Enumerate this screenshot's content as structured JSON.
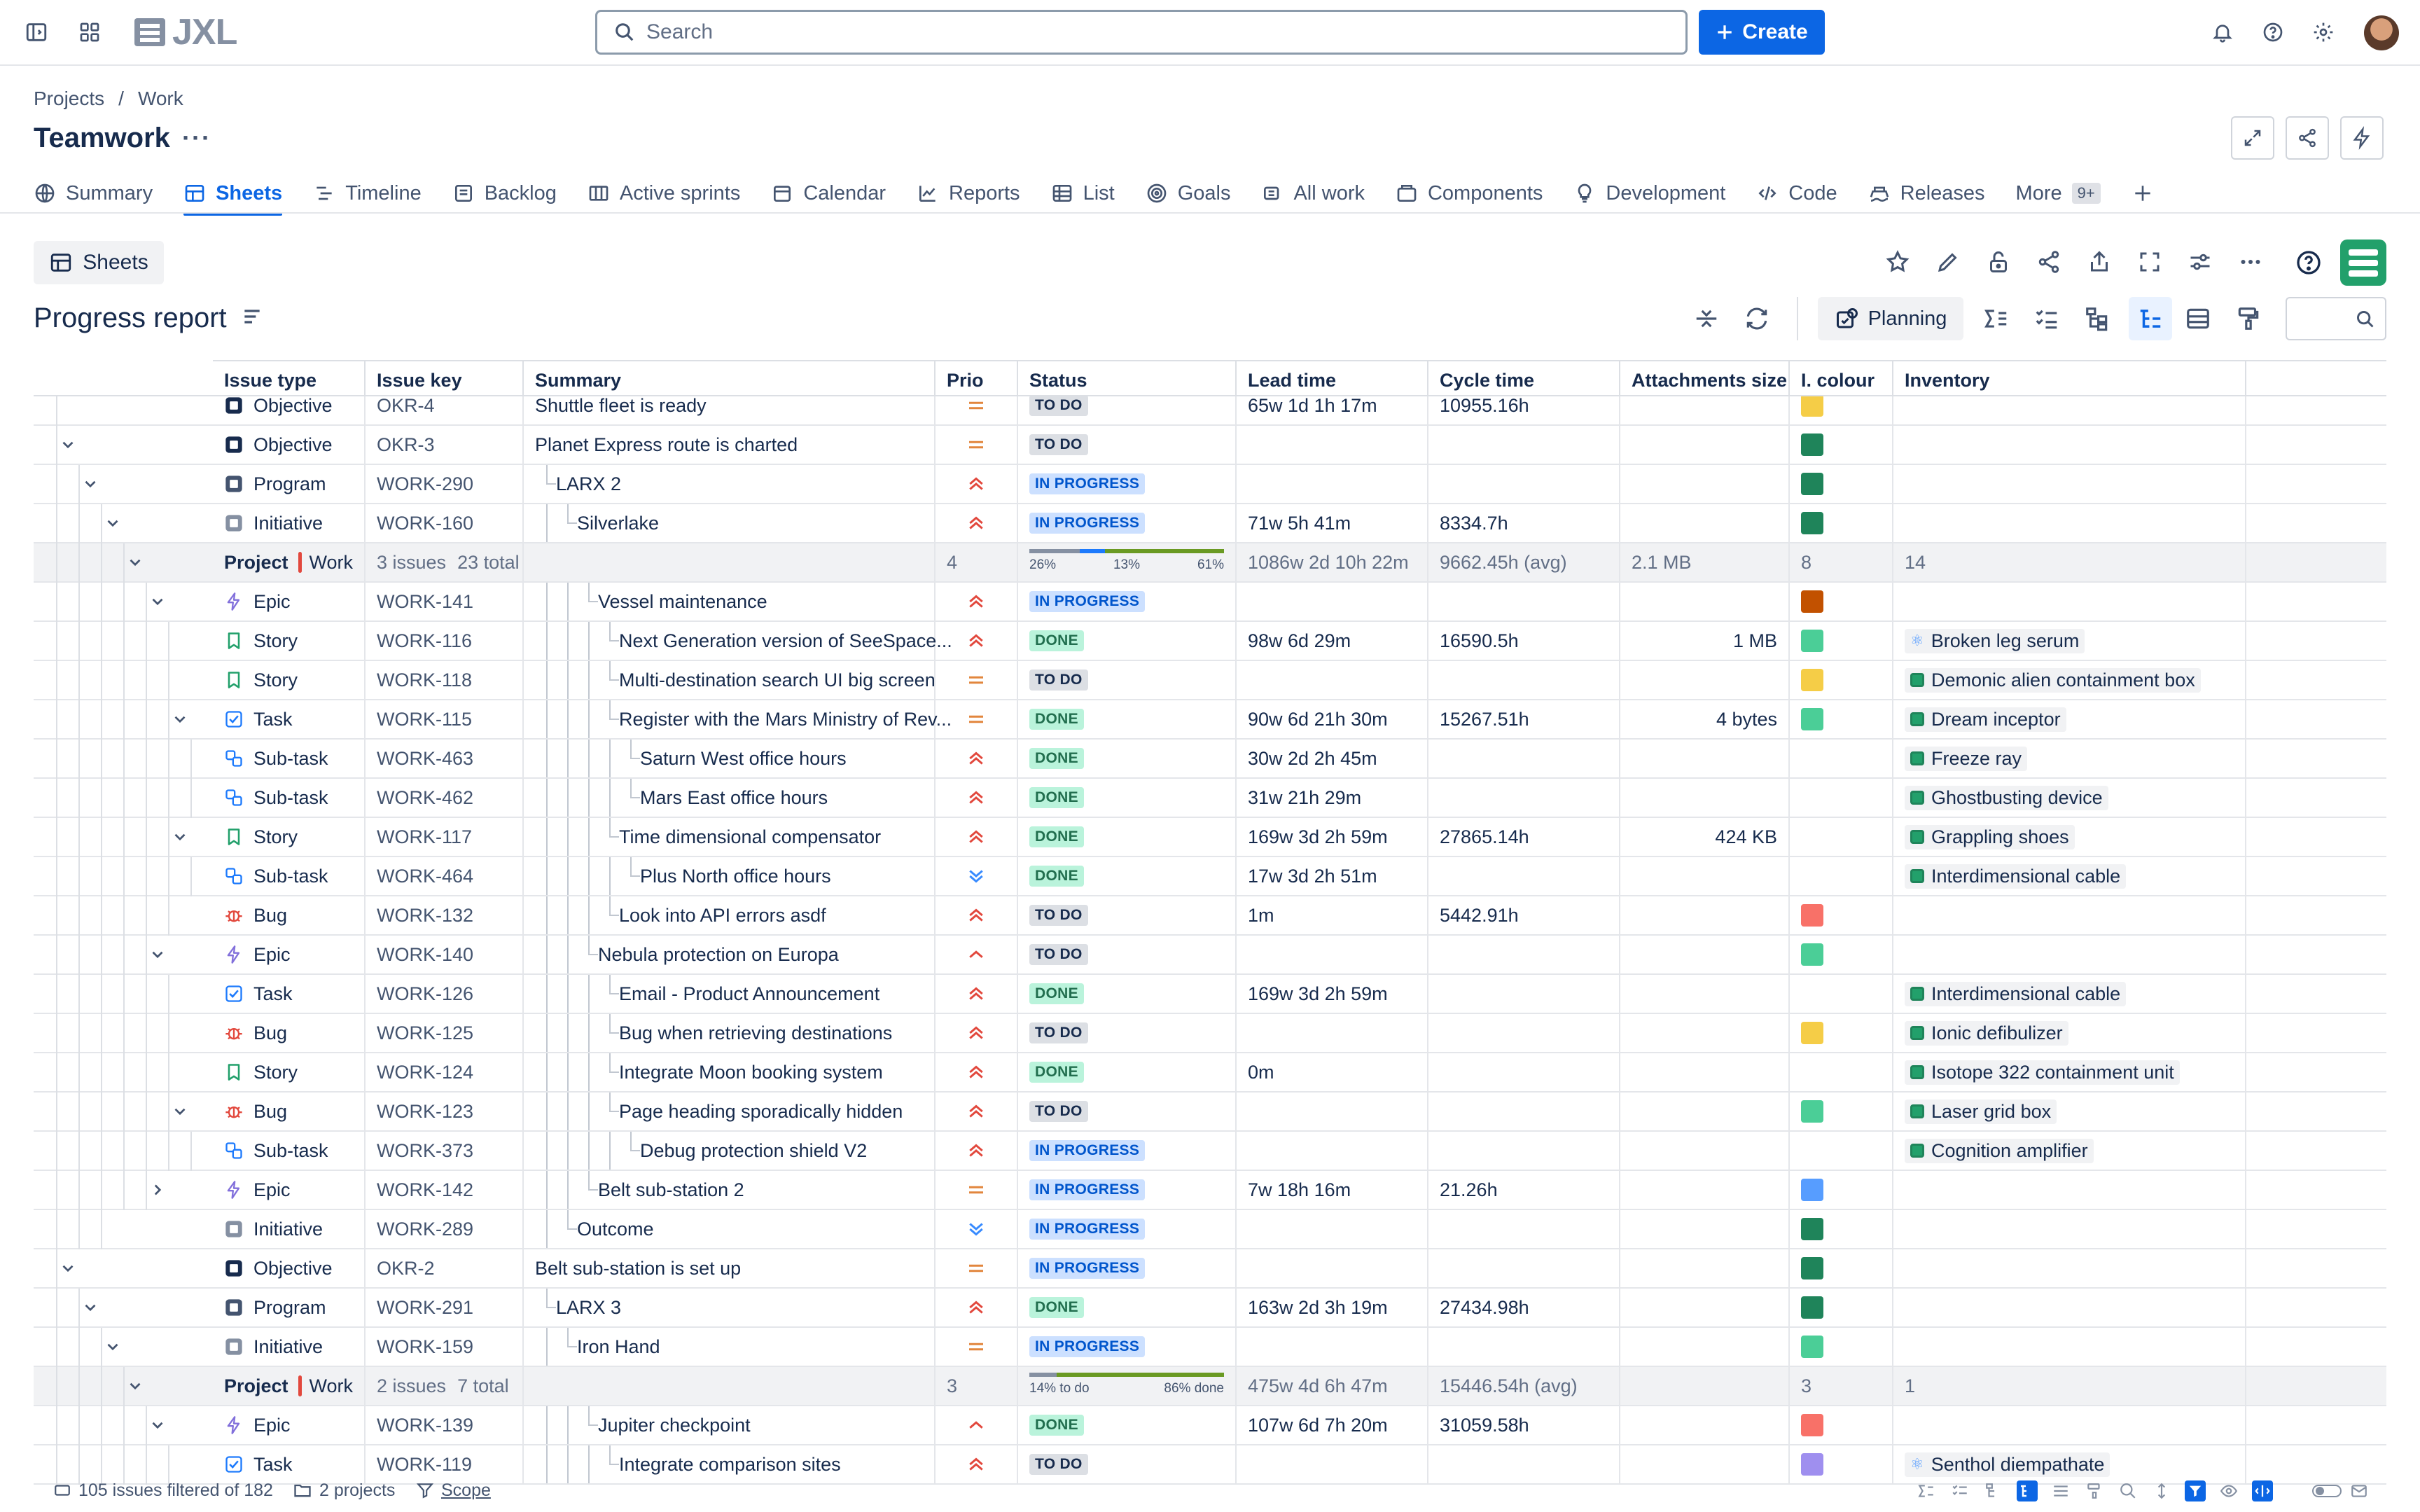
{
  "top": {
    "logo_text": "JXL",
    "search_placeholder": "Search",
    "create_label": "Create"
  },
  "header": {
    "breadcrumb": [
      "Projects",
      "/",
      "Work"
    ],
    "title": "Teamwork",
    "more": "···"
  },
  "tabs": [
    {
      "label": "Summary",
      "icon": "globe-icon"
    },
    {
      "label": "Sheets",
      "icon": "table-icon",
      "active": true
    },
    {
      "label": "Timeline",
      "icon": "timeline-icon"
    },
    {
      "label": "Backlog",
      "icon": "backlog-icon"
    },
    {
      "label": "Active sprints",
      "icon": "board-icon"
    },
    {
      "label": "Calendar",
      "icon": "calendar-icon"
    },
    {
      "label": "Reports",
      "icon": "chart-icon"
    },
    {
      "label": "List",
      "icon": "list-icon"
    },
    {
      "label": "Goals",
      "icon": "target-icon"
    },
    {
      "label": "All work",
      "icon": "stack-icon"
    },
    {
      "label": "Components",
      "icon": "component-icon"
    },
    {
      "label": "Development",
      "icon": "bulb-icon"
    },
    {
      "label": "Code",
      "icon": "code-icon"
    },
    {
      "label": "Releases",
      "icon": "ship-icon"
    },
    {
      "label": "More",
      "icon": "",
      "badge": "9+"
    }
  ],
  "sheets": {
    "button_label": "Sheets",
    "report_title": "Progress report",
    "planning_label": "Planning"
  },
  "columns": [
    "Issue type",
    "Issue key",
    "Summary",
    "Prio",
    "Status",
    "Lead time",
    "Cycle time",
    "Attachments size",
    "I. colour",
    "Inventory"
  ],
  "colors": {
    "accent": "#0c66e4",
    "prio_high": "#e2483d",
    "prio_medium": "#e2863d",
    "prio_low": "#388bff"
  },
  "rows": [
    {
      "kind": "issue",
      "type": "Objective",
      "key": "OKR-4",
      "summary": "Shuttle fleet is ready",
      "indent": 0,
      "prio": "medium",
      "status": "TO DO",
      "lead": "65w 1d 1h 17m",
      "cycle": "10955.16h",
      "att": "",
      "colour": "#f5cd47",
      "inv": "",
      "partial": true,
      "tree": {
        "chev": "",
        "depth": 1
      }
    },
    {
      "kind": "issue",
      "type": "Objective",
      "key": "OKR-3",
      "summary": "Planet Express route is charted",
      "indent": 0,
      "prio": "medium",
      "status": "TO DO",
      "lead": "",
      "cycle": "",
      "att": "",
      "colour": "#1f845a",
      "inv": "",
      "tree": {
        "chev": "down",
        "depth": 1
      }
    },
    {
      "kind": "issue",
      "type": "Program",
      "key": "WORK-290",
      "summary": "LARX 2",
      "indent": 1,
      "prio": "high",
      "status": "IN PROGRESS",
      "lead": "",
      "cycle": "",
      "att": "",
      "colour": "#1f845a",
      "inv": "",
      "tree": {
        "chev": "down",
        "depth": 2
      }
    },
    {
      "kind": "issue",
      "type": "Initiative",
      "key": "WORK-160",
      "summary": "Silverlake",
      "indent": 2,
      "prio": "high",
      "status": "IN PROGRESS",
      "lead": "71w 5h 41m",
      "cycle": "8334.7h",
      "att": "",
      "colour": "#1f845a",
      "inv": "",
      "tree": {
        "chev": "down",
        "depth": 3
      }
    },
    {
      "kind": "project",
      "label": "Project",
      "name": "Work",
      "issues": "3 issues",
      "total": "23 total",
      "prio": "4",
      "progress": {
        "todo": 0.26,
        "prog": 0.13,
        "done": 0.61,
        "labels": [
          "26%",
          "13%",
          "61%"
        ]
      },
      "lead": "1086w 2d 10h 22m",
      "cycle": "9662.45h (avg)",
      "att": "2.1 MB",
      "colour": "8",
      "inv": "14",
      "tree": {
        "chev": "down",
        "depth": 4
      }
    },
    {
      "kind": "issue",
      "type": "Epic",
      "key": "WORK-141",
      "summary": "Vessel maintenance",
      "indent": 3,
      "prio": "high",
      "status": "IN PROGRESS",
      "lead": "",
      "cycle": "",
      "att": "",
      "colour": "#c25100",
      "inv": "",
      "tree": {
        "chev": "down",
        "depth": 5
      }
    },
    {
      "kind": "issue",
      "type": "Story",
      "key": "WORK-116",
      "summary": "Next Generation version of SeeSpace...",
      "indent": 4,
      "prio": "high",
      "status": "DONE",
      "lead": "98w 6d 29m",
      "cycle": "16590.5h",
      "att": "1 MB",
      "colour": "#4bce97",
      "inv": "Broken leg serum",
      "invAtom": true,
      "tree": {
        "chev": "",
        "depth": 6
      }
    },
    {
      "kind": "issue",
      "type": "Story",
      "key": "WORK-118",
      "summary": "Multi-destination search UI big screen",
      "indent": 4,
      "prio": "medium",
      "status": "TO DO",
      "lead": "",
      "cycle": "",
      "att": "",
      "colour": "#f5cd47",
      "inv": "Demonic alien containment box",
      "tree": {
        "chev": "",
        "depth": 6
      }
    },
    {
      "kind": "issue",
      "type": "Task",
      "key": "WORK-115",
      "summary": "Register with the Mars Ministry of Rev...",
      "indent": 4,
      "prio": "medium",
      "status": "DONE",
      "lead": "90w 6d 21h 30m",
      "cycle": "15267.51h",
      "att": "4 bytes",
      "colour": "#4bce97",
      "inv": "Dream inceptor",
      "tree": {
        "chev": "down",
        "depth": 6
      }
    },
    {
      "kind": "issue",
      "type": "Sub-task",
      "key": "WORK-463",
      "summary": "Saturn West office hours",
      "indent": 5,
      "prio": "high",
      "status": "DONE",
      "lead": "30w 2d 2h 45m",
      "cycle": "",
      "att": "",
      "colour": "",
      "inv": "Freeze ray",
      "tree": {
        "chev": "",
        "depth": 7
      }
    },
    {
      "kind": "issue",
      "type": "Sub-task",
      "key": "WORK-462",
      "summary": "Mars East office hours",
      "indent": 5,
      "prio": "high",
      "status": "DONE",
      "lead": "31w 21h 29m",
      "cycle": "",
      "att": "",
      "colour": "",
      "inv": "Ghostbusting device",
      "tree": {
        "chev": "",
        "depth": 7
      }
    },
    {
      "kind": "issue",
      "type": "Story",
      "key": "WORK-117",
      "summary": "Time dimensional compensator",
      "indent": 4,
      "prio": "high",
      "status": "DONE",
      "lead": "169w 3d 2h 59m",
      "cycle": "27865.14h",
      "att": "424 KB",
      "colour": "",
      "inv": "Grappling shoes",
      "tree": {
        "chev": "down",
        "depth": 6
      }
    },
    {
      "kind": "issue",
      "type": "Sub-task",
      "key": "WORK-464",
      "summary": "Plus North office hours",
      "indent": 5,
      "prio": "low",
      "status": "DONE",
      "lead": "17w 3d 2h 51m",
      "cycle": "",
      "att": "",
      "colour": "",
      "inv": "Interdimensional cable",
      "tree": {
        "chev": "",
        "depth": 7
      }
    },
    {
      "kind": "issue",
      "type": "Bug",
      "key": "WORK-132",
      "summary": "Look into API errors asdf",
      "indent": 4,
      "prio": "high",
      "status": "TO DO",
      "lead": "1m",
      "cycle": "5442.91h",
      "att": "",
      "colour": "#f87168",
      "inv": "",
      "tree": {
        "chev": "",
        "depth": 6
      }
    },
    {
      "kind": "issue",
      "type": "Epic",
      "key": "WORK-140",
      "summary": "Nebula protection on Europa",
      "indent": 3,
      "prio": "highsingle",
      "status": "TO DO",
      "lead": "",
      "cycle": "",
      "att": "",
      "colour": "#4bce97",
      "inv": "",
      "tree": {
        "chev": "down",
        "depth": 5
      }
    },
    {
      "kind": "issue",
      "type": "Task",
      "key": "WORK-126",
      "summary": "Email - Product Announcement",
      "indent": 4,
      "prio": "high",
      "status": "DONE",
      "lead": "169w 3d 2h 59m",
      "cycle": "",
      "att": "",
      "colour": "",
      "inv": "Interdimensional cable",
      "tree": {
        "chev": "",
        "depth": 6
      }
    },
    {
      "kind": "issue",
      "type": "Bug",
      "key": "WORK-125",
      "summary": "Bug when retrieving destinations",
      "indent": 4,
      "prio": "high",
      "status": "TO DO",
      "lead": "",
      "cycle": "",
      "att": "",
      "colour": "#f5cd47",
      "inv": "Ionic defibulizer",
      "tree": {
        "chev": "",
        "depth": 6
      }
    },
    {
      "kind": "issue",
      "type": "Story",
      "key": "WORK-124",
      "summary": "Integrate Moon booking system",
      "indent": 4,
      "prio": "high",
      "status": "DONE",
      "lead": "0m",
      "cycle": "",
      "att": "",
      "colour": "",
      "inv": "Isotope 322 containment unit",
      "tree": {
        "chev": "",
        "depth": 6
      }
    },
    {
      "kind": "issue",
      "type": "Bug",
      "key": "WORK-123",
      "summary": "Page heading sporadically hidden",
      "indent": 4,
      "prio": "high",
      "status": "TO DO",
      "lead": "",
      "cycle": "",
      "att": "",
      "colour": "#4bce97",
      "inv": "Laser grid box",
      "tree": {
        "chev": "down",
        "depth": 6
      }
    },
    {
      "kind": "issue",
      "type": "Sub-task",
      "key": "WORK-373",
      "summary": "Debug protection shield V2",
      "indent": 5,
      "prio": "high",
      "status": "IN PROGRESS",
      "lead": "",
      "cycle": "",
      "att": "",
      "colour": "",
      "inv": "Cognition amplifier",
      "tree": {
        "chev": "",
        "depth": 7
      }
    },
    {
      "kind": "issue",
      "type": "Epic",
      "key": "WORK-142",
      "summary": "Belt sub-station 2",
      "indent": 3,
      "prio": "medium",
      "status": "IN PROGRESS",
      "lead": "7w 18h 16m",
      "cycle": "21.26h",
      "att": "",
      "colour": "#579dff",
      "inv": "",
      "tree": {
        "chev": "right",
        "depth": 5
      }
    },
    {
      "kind": "issue",
      "type": "Initiative",
      "key": "WORK-289",
      "summary": "Outcome",
      "indent": 2,
      "prio": "low",
      "status": "IN PROGRESS",
      "lead": "",
      "cycle": "",
      "att": "",
      "colour": "#1f845a",
      "inv": "",
      "tree": {
        "chev": "",
        "depth": 3
      }
    },
    {
      "kind": "issue",
      "type": "Objective",
      "key": "OKR-2",
      "summary": "Belt sub-station is set up",
      "indent": 0,
      "prio": "medium",
      "status": "IN PROGRESS",
      "lead": "",
      "cycle": "",
      "att": "",
      "colour": "#1f845a",
      "inv": "",
      "tree": {
        "chev": "down",
        "depth": 1
      }
    },
    {
      "kind": "issue",
      "type": "Program",
      "key": "WORK-291",
      "summary": "LARX 3",
      "indent": 1,
      "prio": "high",
      "status": "DONE",
      "lead": "163w 2d 3h 19m",
      "cycle": "27434.98h",
      "att": "",
      "colour": "#1f845a",
      "inv": "",
      "tree": {
        "chev": "down",
        "depth": 2
      }
    },
    {
      "kind": "issue",
      "type": "Initiative",
      "key": "WORK-159",
      "summary": "Iron Hand",
      "indent": 2,
      "prio": "medium",
      "status": "IN PROGRESS",
      "lead": "",
      "cycle": "",
      "att": "",
      "colour": "#4bce97",
      "inv": "",
      "tree": {
        "chev": "down",
        "depth": 3
      }
    },
    {
      "kind": "project",
      "label": "Project",
      "name": "Work",
      "issues": "2 issues",
      "total": "7 total",
      "prio": "3",
      "progress": {
        "todo": 0.14,
        "prog": 0.0,
        "done": 0.86,
        "labels": [
          "14% to do",
          "",
          "86% done"
        ]
      },
      "lead": "475w 4d 6h 47m",
      "cycle": "15446.54h (avg)",
      "att": "",
      "colour": "3",
      "inv": "1",
      "tree": {
        "chev": "down",
        "depth": 4
      }
    },
    {
      "kind": "issue",
      "type": "Epic",
      "key": "WORK-139",
      "summary": "Jupiter checkpoint",
      "indent": 3,
      "prio": "highsingle",
      "status": "DONE",
      "lead": "107w 6d 7h 20m",
      "cycle": "31059.58h",
      "att": "",
      "colour": "#f87168",
      "inv": "",
      "tree": {
        "chev": "down",
        "depth": 5
      }
    },
    {
      "kind": "issue",
      "type": "Task",
      "key": "WORK-119",
      "summary": "Integrate comparison sites",
      "indent": 4,
      "prio": "high",
      "status": "TO DO",
      "lead": "",
      "cycle": "",
      "att": "",
      "colour": "#9f8fef",
      "inv": "Senthol diempathate",
      "invAtom": true,
      "tree": {
        "chev": "",
        "depth": 6
      }
    }
  ],
  "footer": {
    "filtered": "105 issues filtered of 182",
    "projects": "2 projects",
    "scope": "Scope"
  }
}
